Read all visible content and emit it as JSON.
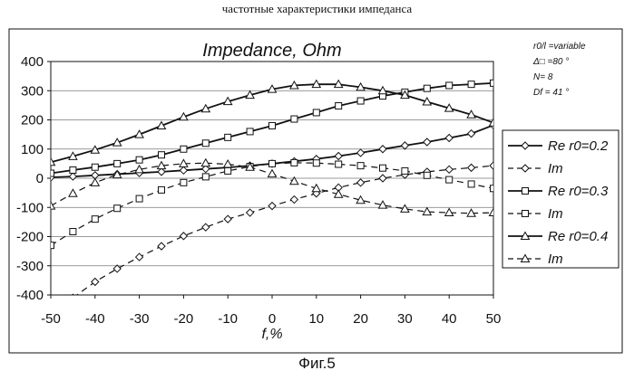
{
  "caption": "частотные характеристики импеданса",
  "figure_label": "Фиг.5",
  "chart_data": {
    "type": "line",
    "title": "Impedance, Ohm",
    "xlabel": "f,%",
    "ylabel": "",
    "xlim": [
      -50,
      50
    ],
    "ylim": [
      -400,
      400
    ],
    "x_ticks": [
      -50,
      -40,
      -30,
      -20,
      -10,
      0,
      10,
      20,
      30,
      40,
      50
    ],
    "y_ticks": [
      400,
      300,
      200,
      100,
      0,
      -100,
      -200,
      -300,
      -400
    ],
    "grid": true,
    "legend_position": "right",
    "annotations": [
      "r0/l  =variable",
      "Δ□ =80 °",
      "N= 8",
      "Df  = 41 °"
    ],
    "x": [
      -50,
      -45,
      -40,
      -35,
      -30,
      -25,
      -20,
      -15,
      -10,
      -5,
      0,
      5,
      10,
      15,
      20,
      25,
      30,
      35,
      40,
      45,
      50
    ],
    "series": [
      {
        "name": "Re r0=0.2",
        "marker": "diamond",
        "dash": false,
        "values": [
          3,
          6,
          10,
          14,
          18,
          22,
          27,
          32,
          37,
          43,
          50,
          58,
          66,
          76,
          87,
          100,
          112,
          124,
          138,
          153,
          182
        ]
      },
      {
        "name": "Im",
        "marker": "diamond",
        "dash": true,
        "values": [
          null,
          -410,
          -355,
          -310,
          -270,
          -233,
          -198,
          -168,
          -140,
          -118,
          -95,
          -73,
          -52,
          -32,
          -15,
          0,
          12,
          22,
          30,
          36,
          43
        ]
      },
      {
        "name": "Re r0=0.3",
        "marker": "square",
        "dash": false,
        "values": [
          17,
          28,
          38,
          50,
          63,
          80,
          100,
          120,
          140,
          160,
          180,
          203,
          225,
          248,
          265,
          282,
          295,
          308,
          318,
          322,
          326
        ]
      },
      {
        "name": "Im",
        "marker": "square",
        "dash": true,
        "values": [
          -230,
          -183,
          -140,
          -103,
          -70,
          -40,
          -15,
          5,
          25,
          40,
          50,
          53,
          52,
          48,
          43,
          35,
          25,
          10,
          -5,
          -20,
          -35
        ]
      },
      {
        "name": "Re r0=0.4",
        "marker": "triangle",
        "dash": false,
        "values": [
          55,
          75,
          97,
          122,
          150,
          180,
          210,
          238,
          263,
          285,
          305,
          318,
          322,
          322,
          312,
          300,
          285,
          262,
          240,
          218,
          190
        ]
      },
      {
        "name": "Im",
        "marker": "triangle",
        "dash": true,
        "values": [
          -95,
          -52,
          -15,
          12,
          30,
          43,
          50,
          52,
          48,
          38,
          15,
          -10,
          -35,
          -55,
          -75,
          -92,
          -105,
          -115,
          -118,
          -120,
          -118
        ]
      }
    ]
  }
}
